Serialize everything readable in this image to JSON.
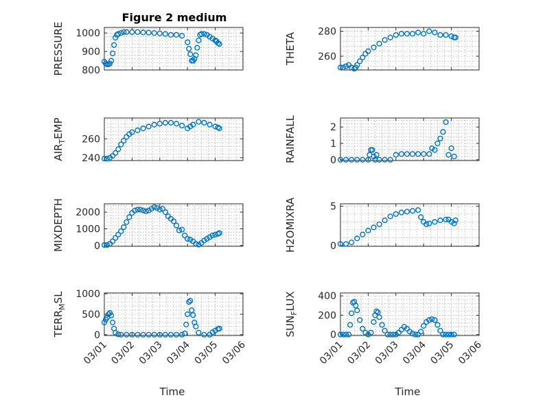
{
  "figure": {
    "title": "Figure 2 medium",
    "marker_color": "#0072BD",
    "grid": "on",
    "x_tick_labels": [
      "03/01",
      "03/02",
      "03/03",
      "03/04",
      "03/05",
      "03/06"
    ],
    "x_label": "Time"
  },
  "chart_data": [
    {
      "type": "scatter",
      "ylabel_main": "PRESSURE",
      "ylabel_sub": "",
      "ylabel_suffix": "",
      "xlim": [
        0,
        5
      ],
      "ylim": [
        800,
        1030
      ],
      "yticks": [
        800,
        900,
        1000
      ],
      "x": [
        0.0,
        0.05,
        0.1,
        0.15,
        0.2,
        0.25,
        0.3,
        0.35,
        0.4,
        0.45,
        0.5,
        0.6,
        0.7,
        0.8,
        1.0,
        1.2,
        1.4,
        1.6,
        1.8,
        2.0,
        2.2,
        2.4,
        2.6,
        2.8,
        3.0,
        3.05,
        3.1,
        3.15,
        3.2,
        3.25,
        3.3,
        3.35,
        3.4,
        3.45,
        3.5,
        3.6,
        3.7,
        3.8,
        3.9,
        4.0,
        4.05,
        4.1,
        4.15
      ],
      "y": [
        845,
        835,
        830,
        830,
        835,
        850,
        890,
        935,
        975,
        990,
        995,
        1000,
        1005,
        1005,
        1005,
        1005,
        1003,
        1002,
        1000,
        998,
        995,
        990,
        990,
        985,
        950,
        915,
        885,
        850,
        850,
        860,
        880,
        920,
        960,
        990,
        995,
        995,
        990,
        980,
        970,
        960,
        955,
        945,
        940
      ]
    },
    {
      "type": "scatter",
      "ylabel_main": "THETA",
      "ylabel_sub": "",
      "ylabel_suffix": "",
      "xlim": [
        0,
        5
      ],
      "ylim": [
        249,
        283
      ],
      "yticks": [
        260,
        280
      ],
      "x": [
        0.0,
        0.1,
        0.2,
        0.3,
        0.4,
        0.5,
        0.55,
        0.6,
        0.7,
        0.8,
        0.9,
        1.0,
        1.2,
        1.4,
        1.6,
        1.8,
        2.0,
        2.2,
        2.4,
        2.6,
        2.8,
        3.0,
        3.2,
        3.4,
        3.6,
        3.8,
        4.0,
        4.1,
        4.15
      ],
      "y": [
        251,
        251,
        252,
        253,
        251,
        250,
        251,
        253,
        256,
        259,
        262,
        264,
        267,
        270,
        273,
        275,
        277,
        278,
        278,
        278,
        279,
        278,
        280,
        279,
        277,
        277,
        276,
        275,
        275
      ]
    },
    {
      "type": "scatter",
      "ylabel_main": "AIR",
      "ylabel_sub": "T",
      "ylabel_suffix": "EMP",
      "xlim": [
        0,
        5
      ],
      "ylim": [
        237,
        282
      ],
      "yticks": [
        240,
        260
      ],
      "x": [
        0.0,
        0.1,
        0.2,
        0.3,
        0.4,
        0.5,
        0.6,
        0.7,
        0.8,
        0.9,
        1.0,
        1.2,
        1.4,
        1.6,
        1.8,
        2.0,
        2.2,
        2.4,
        2.6,
        2.8,
        3.0,
        3.1,
        3.2,
        3.4,
        3.6,
        3.8,
        4.0,
        4.1,
        4.15
      ],
      "y": [
        239,
        239,
        240,
        242,
        245,
        249,
        254,
        258,
        262,
        265,
        267,
        269,
        271,
        273,
        275,
        276,
        277,
        277,
        276,
        274,
        271,
        273,
        275,
        278,
        277,
        275,
        273,
        272,
        271
      ]
    },
    {
      "type": "scatter",
      "ylabel_main": "RAINFALL",
      "ylabel_sub": "",
      "ylabel_suffix": "",
      "xlim": [
        0,
        5
      ],
      "ylim": [
        -0.05,
        2.55
      ],
      "yticks": [
        0,
        1,
        2
      ],
      "x": [
        0.0,
        0.2,
        0.4,
        0.6,
        0.8,
        1.0,
        1.05,
        1.1,
        1.15,
        1.2,
        1.25,
        1.3,
        1.4,
        1.6,
        1.8,
        2.0,
        2.2,
        2.4,
        2.6,
        2.8,
        3.0,
        3.2,
        3.3,
        3.4,
        3.5,
        3.6,
        3.7,
        3.8,
        3.9,
        4.0,
        4.1
      ],
      "y": [
        0,
        0,
        0,
        0,
        0,
        0,
        0.3,
        0.6,
        0.6,
        0.2,
        0,
        0.3,
        0,
        0,
        0,
        0.3,
        0.35,
        0.35,
        0.35,
        0.35,
        0.35,
        0.35,
        0.7,
        0.6,
        1.0,
        1.3,
        1.7,
        2.3,
        0.3,
        0.7,
        0.2
      ]
    },
    {
      "type": "scatter",
      "ylabel_main": "MIXDEPTH",
      "ylabel_sub": "",
      "ylabel_suffix": "",
      "xlim": [
        0,
        5
      ],
      "ylim": [
        -50,
        2500
      ],
      "yticks": [
        0,
        1000,
        2000
      ],
      "x": [
        0.0,
        0.1,
        0.2,
        0.3,
        0.4,
        0.5,
        0.6,
        0.7,
        0.8,
        0.9,
        1.0,
        1.1,
        1.2,
        1.3,
        1.4,
        1.5,
        1.6,
        1.7,
        1.8,
        1.9,
        2.0,
        2.1,
        2.2,
        2.3,
        2.4,
        2.5,
        2.6,
        2.7,
        2.8,
        2.9,
        3.0,
        3.1,
        3.2,
        3.3,
        3.4,
        3.5,
        3.6,
        3.7,
        3.8,
        3.9,
        4.0,
        4.1,
        4.15
      ],
      "y": [
        30,
        30,
        100,
        250,
        450,
        650,
        850,
        1100,
        1400,
        1700,
        1950,
        2100,
        2150,
        2150,
        2100,
        2050,
        2100,
        2200,
        2300,
        2250,
        2150,
        2200,
        2000,
        1750,
        1600,
        1450,
        1200,
        900,
        950,
        600,
        400,
        350,
        250,
        100,
        50,
        150,
        300,
        400,
        500,
        600,
        650,
        700,
        750
      ]
    },
    {
      "type": "scatter",
      "ylabel_main": "H2OMIXRA",
      "ylabel_sub": "",
      "ylabel_suffix": "",
      "xlim": [
        0,
        5
      ],
      "ylim": [
        -0.1,
        5.3
      ],
      "yticks": [
        0,
        5
      ],
      "x": [
        0.0,
        0.2,
        0.4,
        0.6,
        0.8,
        1.0,
        1.2,
        1.4,
        1.6,
        1.8,
        2.0,
        2.2,
        2.4,
        2.6,
        2.8,
        2.9,
        3.0,
        3.1,
        3.2,
        3.4,
        3.6,
        3.8,
        3.9,
        4.0,
        4.1,
        4.15
      ],
      "y": [
        0.2,
        0.2,
        0.4,
        0.9,
        1.4,
        1.9,
        2.3,
        2.7,
        3.2,
        3.7,
        4.0,
        4.2,
        4.3,
        4.4,
        4.5,
        3.6,
        3.0,
        2.7,
        2.8,
        3.0,
        3.2,
        3.3,
        3.3,
        3.0,
        2.8,
        3.2
      ]
    },
    {
      "type": "scatter",
      "ylabel_main": "TERR",
      "ylabel_sub": "M",
      "ylabel_suffix": "SL",
      "xlim": [
        0,
        5
      ],
      "ylim": [
        -20,
        1020
      ],
      "yticks": [
        0,
        500,
        1000
      ],
      "x": [
        0.0,
        0.05,
        0.1,
        0.15,
        0.2,
        0.25,
        0.3,
        0.35,
        0.4,
        0.5,
        0.6,
        0.8,
        1.0,
        1.2,
        1.4,
        1.6,
        1.8,
        2.0,
        2.2,
        2.4,
        2.6,
        2.8,
        2.9,
        2.95,
        3.0,
        3.05,
        3.1,
        3.15,
        3.2,
        3.25,
        3.3,
        3.4,
        3.6,
        3.8,
        3.9,
        4.0,
        4.1,
        4.15
      ],
      "y": [
        300,
        370,
        420,
        500,
        530,
        470,
        300,
        150,
        50,
        10,
        0,
        0,
        0,
        0,
        0,
        0,
        0,
        0,
        0,
        0,
        0,
        0,
        30,
        250,
        500,
        800,
        830,
        600,
        480,
        300,
        200,
        50,
        0,
        0,
        60,
        100,
        140,
        150
      ]
    },
    {
      "type": "scatter",
      "ylabel_main": "SUN",
      "ylabel_sub": "F",
      "ylabel_suffix": "LUX",
      "xlim": [
        0,
        5
      ],
      "ylim": [
        -10,
        430
      ],
      "yticks": [
        0,
        200,
        400
      ],
      "x": [
        0.0,
        0.1,
        0.2,
        0.3,
        0.35,
        0.4,
        0.45,
        0.5,
        0.55,
        0.6,
        0.7,
        0.8,
        0.9,
        1.0,
        1.1,
        1.2,
        1.25,
        1.3,
        1.35,
        1.4,
        1.5,
        1.6,
        1.7,
        1.8,
        1.9,
        2.0,
        2.1,
        2.2,
        2.3,
        2.4,
        2.5,
        2.6,
        2.7,
        2.8,
        2.9,
        3.0,
        3.1,
        3.2,
        3.3,
        3.4,
        3.5,
        3.6,
        3.7,
        3.8,
        3.9,
        4.0,
        4.1
      ],
      "y": [
        0,
        0,
        0,
        0,
        100,
        220,
        330,
        340,
        300,
        250,
        150,
        60,
        20,
        0,
        20,
        130,
        200,
        240,
        230,
        180,
        100,
        40,
        0,
        0,
        0,
        0,
        20,
        50,
        80,
        60,
        30,
        10,
        0,
        0,
        30,
        90,
        130,
        150,
        160,
        150,
        100,
        40,
        0,
        0,
        0,
        0,
        0
      ]
    }
  ]
}
